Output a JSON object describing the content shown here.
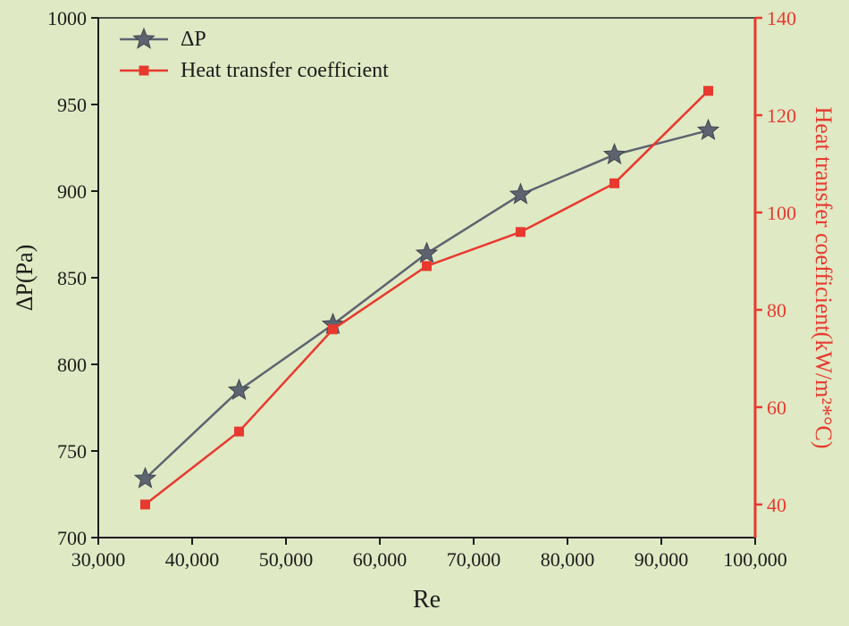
{
  "chart_data": {
    "type": "line",
    "title": "",
    "xlabel": "Re",
    "ylabel_left": "ΔP(Pa)",
    "ylabel_right": "Heat transfer coefficient(kW/m²*°C)",
    "xlim": [
      30000,
      100000
    ],
    "x_ticks": [
      30000,
      40000,
      50000,
      60000,
      70000,
      80000,
      90000,
      100000
    ],
    "x_tick_labels": [
      "30,000",
      "40,000",
      "50,000",
      "60,000",
      "70,000",
      "80,000",
      "90,000",
      "100,000"
    ],
    "y_left_lim": [
      700,
      1000
    ],
    "y_left_ticks": [
      700,
      750,
      800,
      850,
      900,
      950,
      1000
    ],
    "y_left_tick_labels": [
      "700",
      "750",
      "800",
      "850",
      "900",
      "950",
      "1000"
    ],
    "y_right_lim": [
      33.2,
      140
    ],
    "y_right_ticks": [
      40,
      60,
      80,
      100,
      120,
      140
    ],
    "y_right_tick_labels": [
      "40",
      "60",
      "80",
      "100",
      "120",
      "140"
    ],
    "grid": false,
    "legend_position": "top-left",
    "x": [
      35000,
      45000,
      55000,
      65000,
      75000,
      85000,
      95000
    ],
    "series": [
      {
        "name": "ΔP",
        "axis": "left",
        "marker": "star",
        "color": "#5d6470",
        "values": [
          734,
          785,
          823,
          864,
          898,
          921,
          935
        ]
      },
      {
        "name": "Heat transfer coefficient",
        "axis": "right",
        "marker": "square",
        "color": "#e8392f",
        "values": [
          40,
          55,
          76,
          89,
          96,
          106,
          125
        ]
      }
    ]
  },
  "colors": {
    "background": "#dfe9c4",
    "axis": "#1c1c1c",
    "right_axis": "#e8392f",
    "star_edge": "#40454e"
  }
}
